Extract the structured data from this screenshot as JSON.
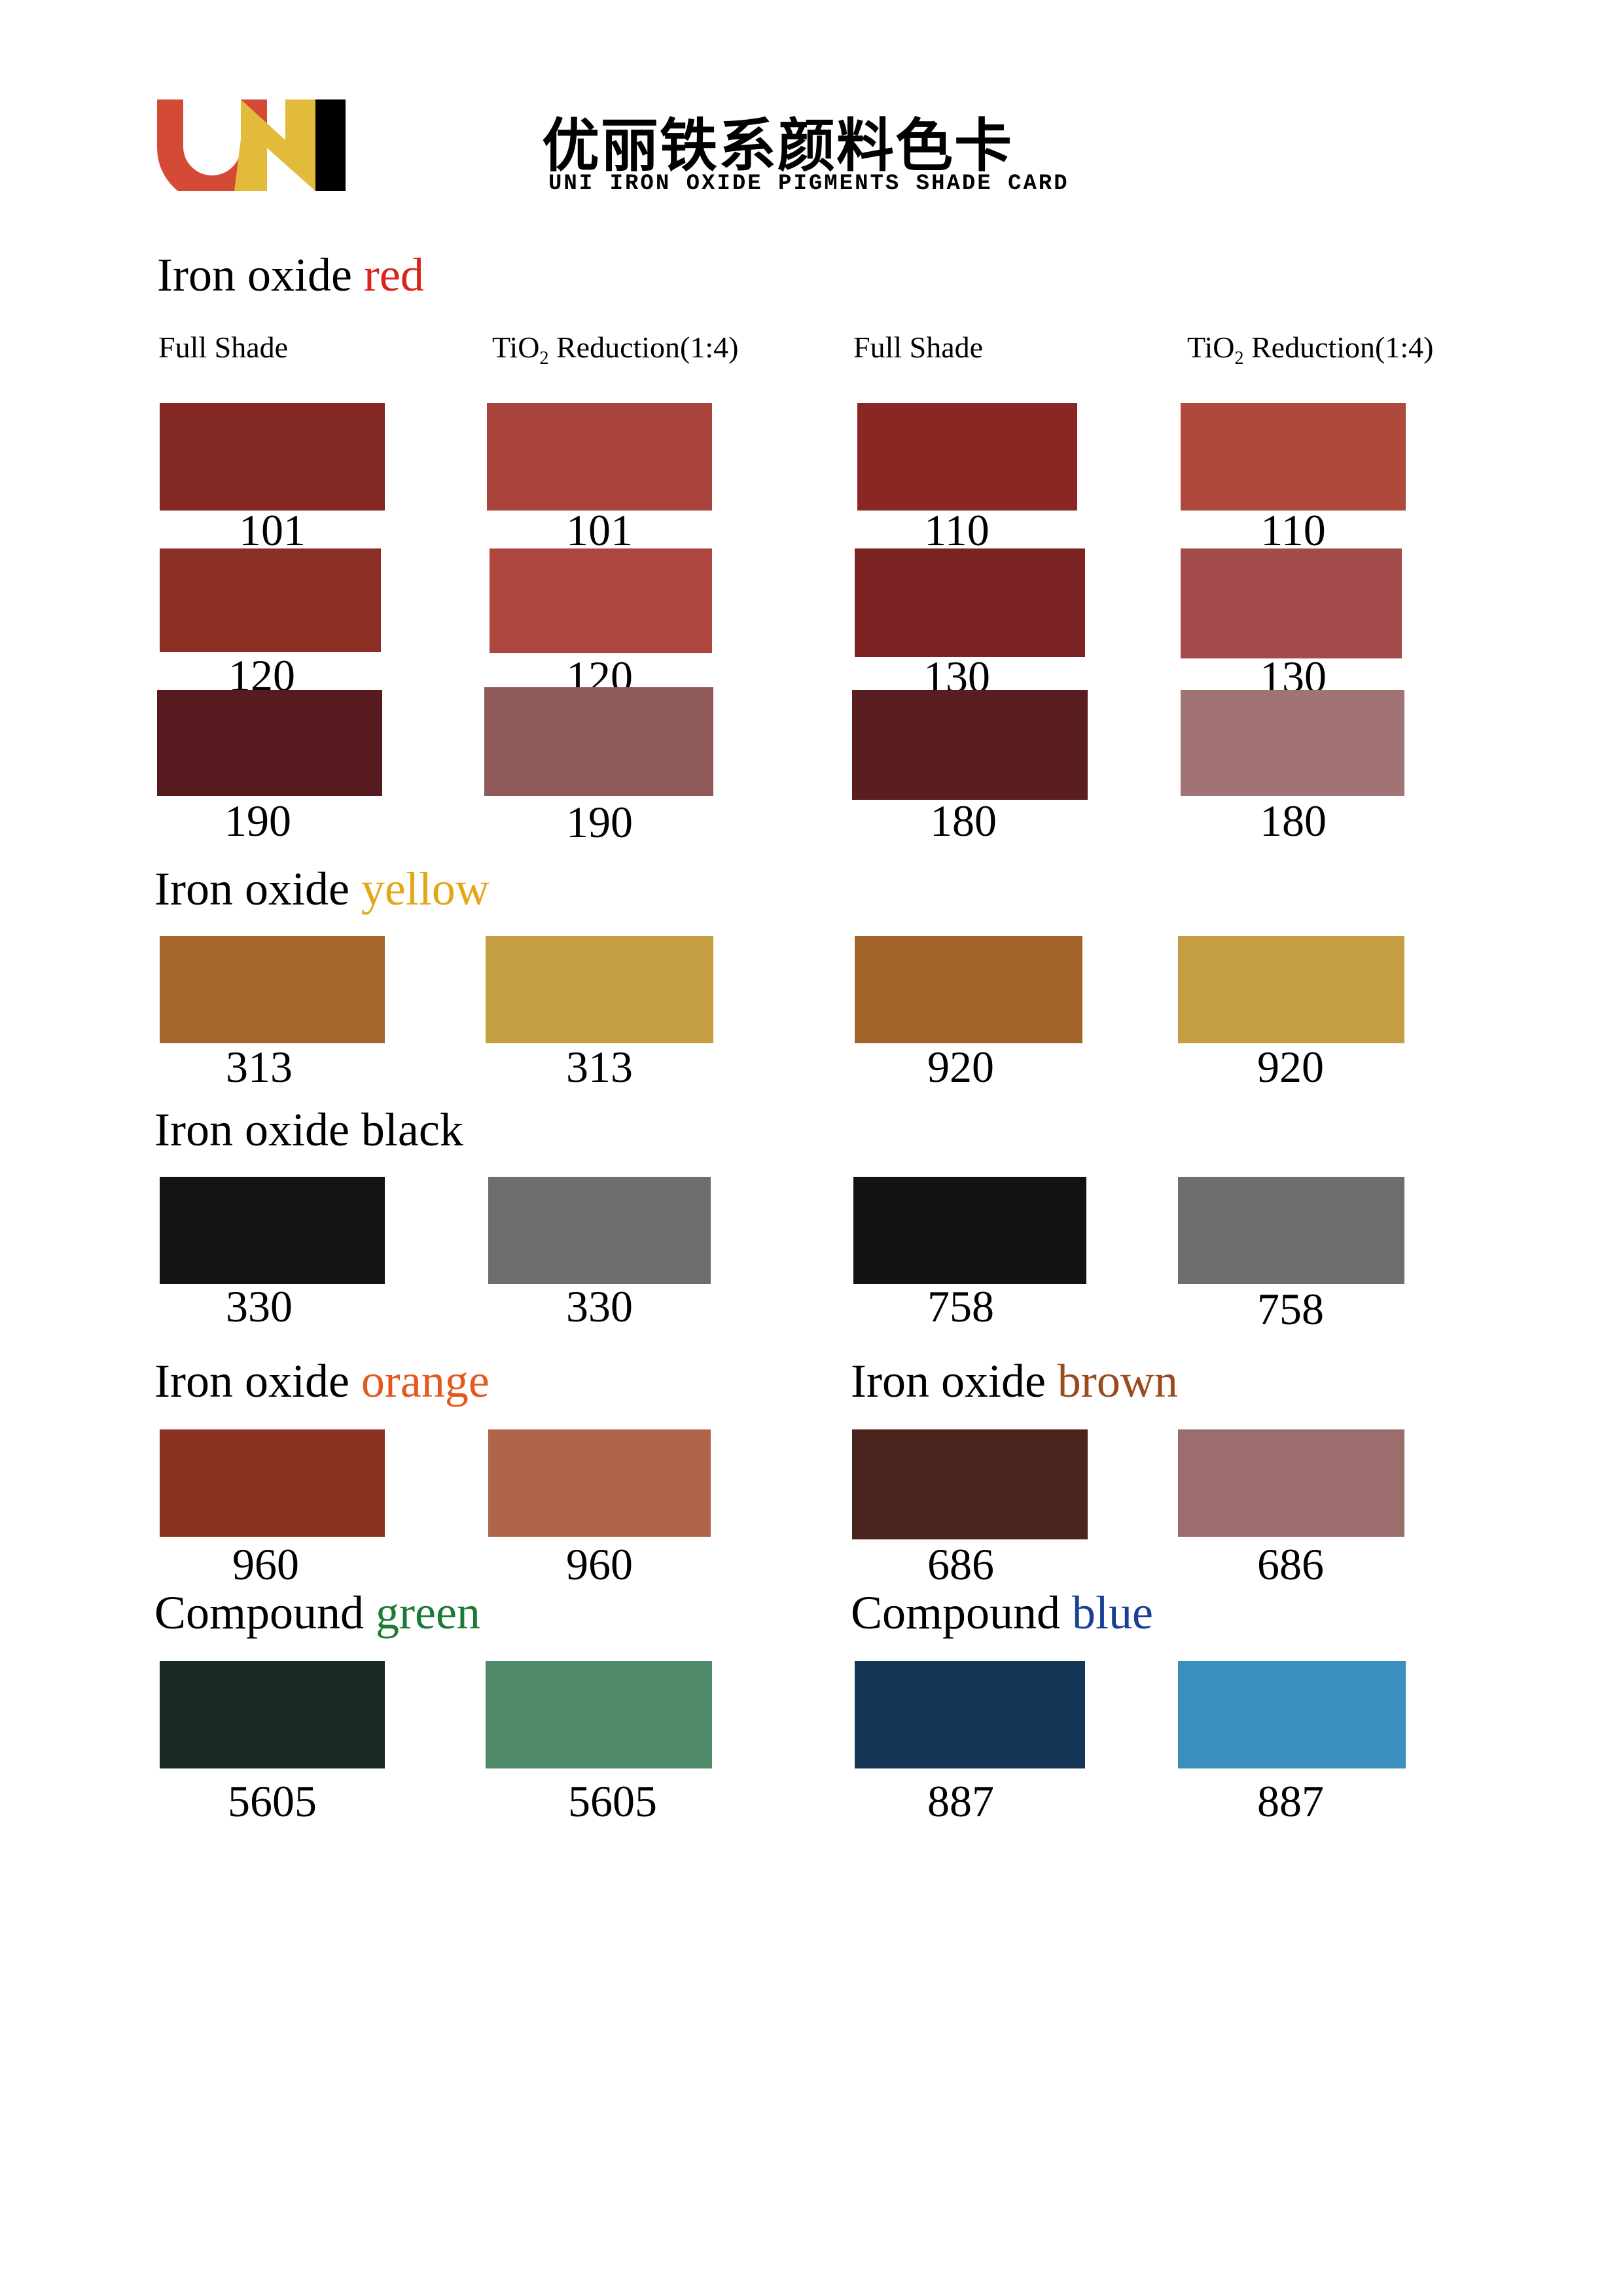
{
  "header": {
    "title_cn": "优丽铁系颜料色卡",
    "title_en": "UNI IRON OXIDE PIGMENTS SHADE CARD",
    "logo_text": "UNI",
    "logo_colors": {
      "U": "#d44a36",
      "N": "#e3bb3a",
      "I": "#000000"
    }
  },
  "column_headers": [
    {
      "main": "Full Shade",
      "sub": "",
      "rest": ""
    },
    {
      "main": "TiO",
      "sub": "2",
      "rest": " Reduction(1:4)"
    },
    {
      "main": "Full Shade",
      "sub": "",
      "rest": ""
    },
    {
      "main": "TiO",
      "sub": "2",
      "rest": " Reduction(1:4)"
    }
  ],
  "sections": [
    {
      "prefix": "Iron oxide ",
      "word": "red",
      "word_color": "#d8241c"
    },
    {
      "prefix": "Iron oxide ",
      "word": "yellow",
      "word_color": "#e4a516"
    },
    {
      "prefix": "Iron oxide ",
      "word": "black",
      "word_color": "#000000"
    },
    {
      "prefix": "Iron oxide ",
      "word": "orange",
      "word_color": "#e3581e"
    },
    {
      "prefix": "Iron oxide ",
      "word": "brown",
      "word_color": "#9a4a1e"
    },
    {
      "prefix": "Compound ",
      "word": "green",
      "word_color": "#1c7a37"
    },
    {
      "prefix": "Compound ",
      "word": "blue",
      "word_color": "#1a3f95"
    }
  ],
  "swatches": [
    {
      "code": "101",
      "color": "#832824"
    },
    {
      "code": "101",
      "color": "#a9443d"
    },
    {
      "code": "110",
      "color": "#8a2724"
    },
    {
      "code": "110",
      "color": "#ae493b"
    },
    {
      "code": "120",
      "color": "#8b2e24"
    },
    {
      "code": "120",
      "color": "#ae453e"
    },
    {
      "code": "130",
      "color": "#7b2222"
    },
    {
      "code": "130",
      "color": "#a24b4a"
    },
    {
      "code": "190",
      "color": "#561a1f"
    },
    {
      "code": "190",
      "color": "#8f5859"
    },
    {
      "code": "180",
      "color": "#5a1e20"
    },
    {
      "code": "180",
      "color": "#a17374"
    },
    {
      "code": "313",
      "color": "#a5672a"
    },
    {
      "code": "313",
      "color": "#c59e42"
    },
    {
      "code": "920",
      "color": "#a26428"
    },
    {
      "code": "920",
      "color": "#c49e40"
    },
    {
      "code": "330",
      "color": "#141414"
    },
    {
      "code": "330",
      "color": "#6f6e6c"
    },
    {
      "code": "758",
      "color": "#121212"
    },
    {
      "code": "758",
      "color": "#6e6e6f"
    },
    {
      "code": "960",
      "color": "#8b3322"
    },
    {
      "code": "960",
      "color": "#b0654b"
    },
    {
      "code": "686",
      "color": "#4a241d"
    },
    {
      "code": "686",
      "color": "#9b6e6d"
    },
    {
      "code": "5605",
      "color": "#1a2a22"
    },
    {
      "code": "5605",
      "color": "#4f8a6b"
    },
    {
      "code": "887",
      "color": "#153556"
    },
    {
      "code": "887",
      "color": "#3a90bc"
    }
  ]
}
